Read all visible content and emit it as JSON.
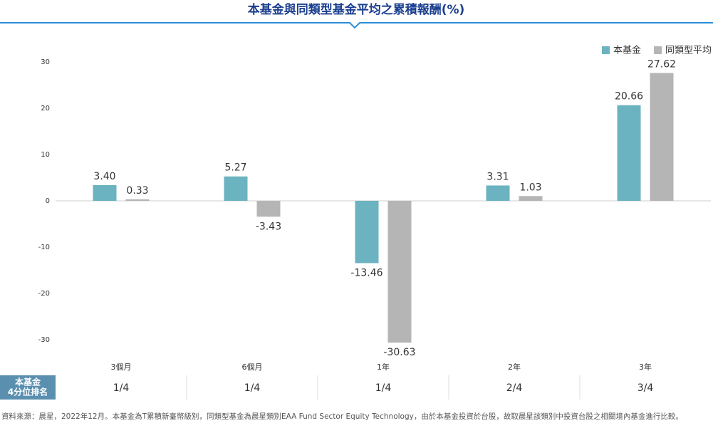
{
  "chart_data": {
    "type": "bar",
    "title": "本基金與同類型基金平均之累積報酬(%)",
    "categories": [
      "3個月",
      "6個月",
      "1年",
      "2年",
      "3年"
    ],
    "series": [
      {
        "name": "本基金",
        "color": "#6bb3c0",
        "values": [
          3.4,
          5.27,
          -13.46,
          3.31,
          20.66
        ],
        "value_labels": [
          "3.40",
          "5.27",
          "-13.46",
          "3.31",
          "20.66"
        ]
      },
      {
        "name": "同類型平均",
        "color": "#b5b5b5",
        "values": [
          0.33,
          -3.43,
          -30.63,
          1.03,
          27.62
        ],
        "value_labels": [
          "0.33",
          "-3.43",
          "-30.63",
          "1.03",
          "27.62"
        ]
      }
    ],
    "ylim": [
      -30,
      30
    ],
    "yticks": [
      30,
      20,
      10,
      0,
      -10,
      -20,
      -30
    ],
    "grid": false,
    "legend": "top-right"
  },
  "ranking": {
    "header": [
      "本基金",
      "4分位排名"
    ],
    "values": [
      "1/4",
      "1/4",
      "1/4",
      "2/4",
      "3/4"
    ]
  },
  "footnote": "資料來源：晨星，2022年12月。本基金為T累積新臺幣級別，同類型基金為晨星類別EAA Fund Sector Equity Technology，由於本基金投資於台股，故取晨星該類別中投資台股之相關境內基金進行比較。"
}
